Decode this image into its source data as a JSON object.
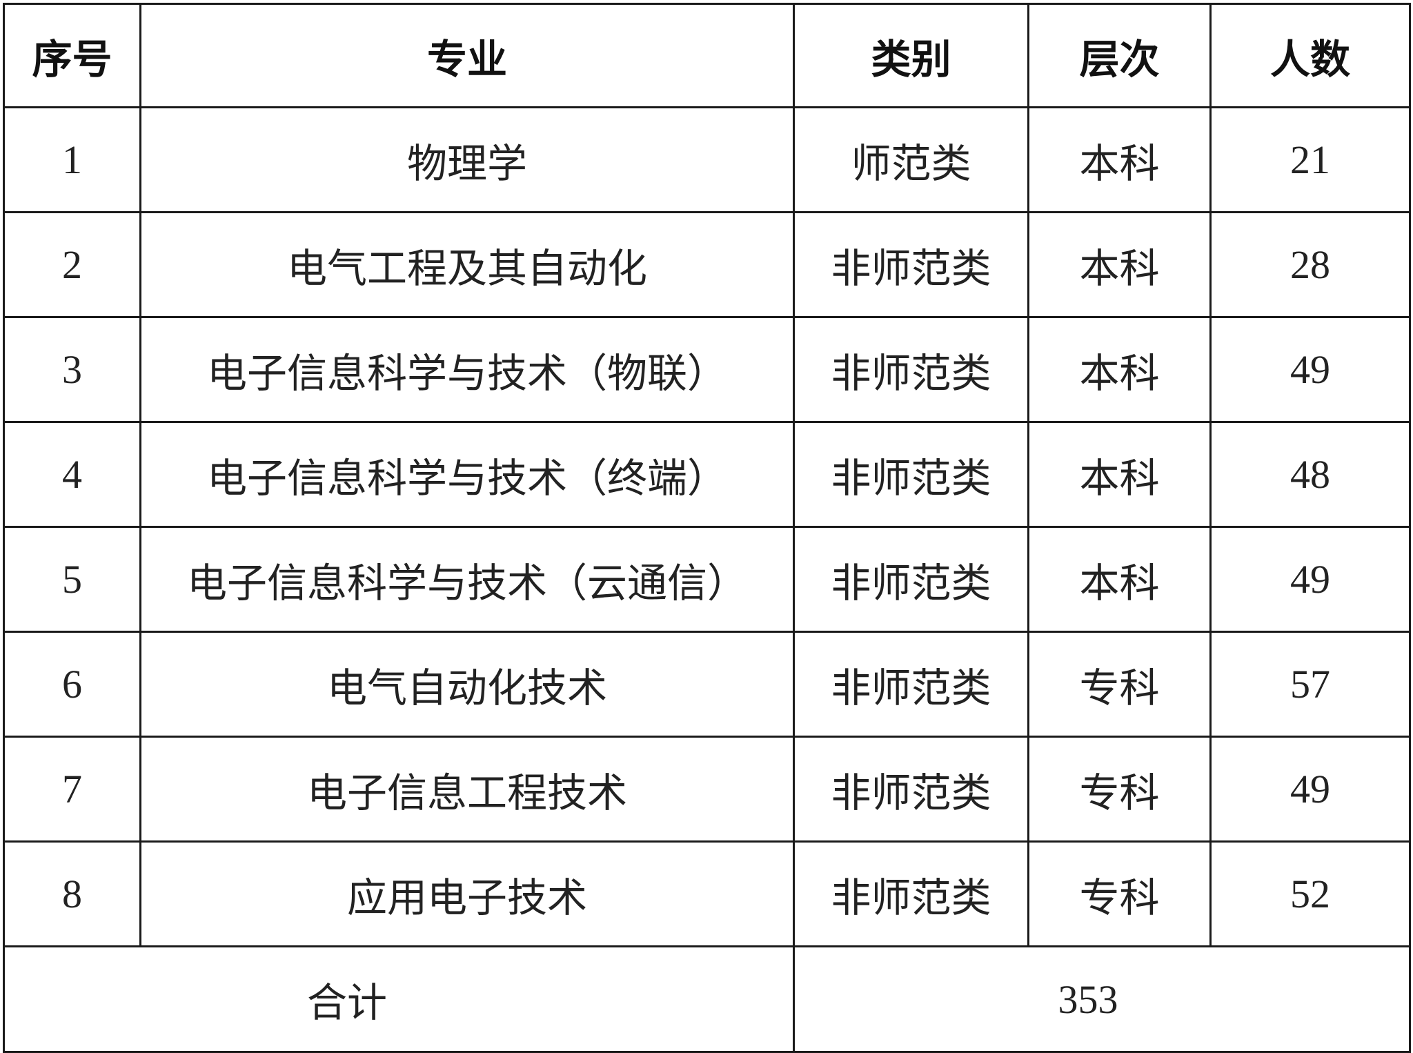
{
  "table": {
    "headers": [
      "序号",
      "专业",
      "类别",
      "层次",
      "人数"
    ],
    "rows": [
      [
        "1",
        "物理学",
        "师范类",
        "本科",
        "21"
      ],
      [
        "2",
        "电气工程及其自动化",
        "非师范类",
        "本科",
        "28"
      ],
      [
        "3",
        "电子信息科学与技术（物联）",
        "非师范类",
        "本科",
        "49"
      ],
      [
        "4",
        "电子信息科学与技术（终端）",
        "非师范类",
        "本科",
        "48"
      ],
      [
        "5",
        "电子信息科学与技术（云通信）",
        "非师范类",
        "本科",
        "49"
      ],
      [
        "6",
        "电气自动化技术",
        "非师范类",
        "专科",
        "57"
      ],
      [
        "7",
        "电子信息工程技术",
        "非师范类",
        "专科",
        "49"
      ],
      [
        "8",
        "应用电子技术",
        "非师范类",
        "专科",
        "52"
      ]
    ],
    "total": {
      "label": "合计",
      "value": "353"
    }
  }
}
